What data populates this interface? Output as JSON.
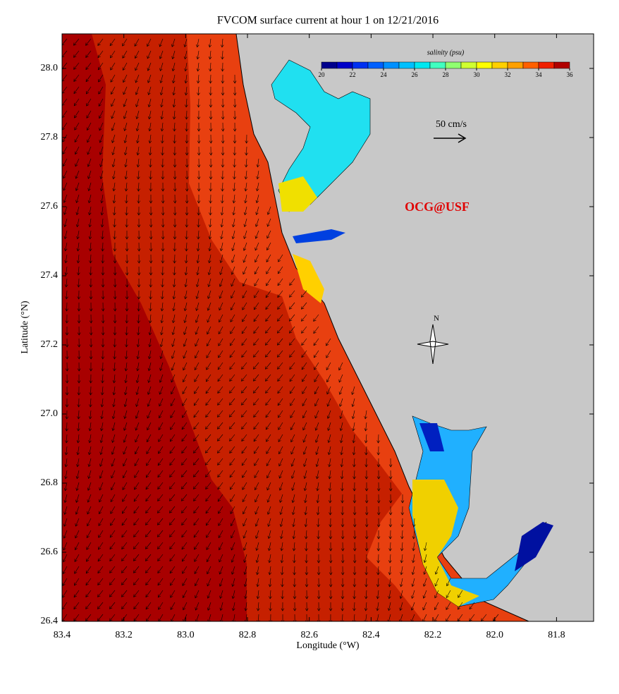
{
  "title": "FVCOM surface current at hour 1 on 12/21/2016",
  "x_axis": {
    "label": "Longitude (°W)",
    "lim": [
      83.4,
      81.68
    ],
    "ticks": [
      83.4,
      83.2,
      {
        "value": 83.0,
        "label": "83.0"
      },
      82.8,
      82.6,
      82.4,
      82.2,
      {
        "value": 82.0,
        "label": "82.0"
      },
      81.8
    ]
  },
  "y_axis": {
    "label": "Latitude (°N)",
    "lim": [
      26.4,
      28.1
    ],
    "ticks": [
      26.4,
      26.6,
      26.8,
      {
        "value": 27.0,
        "label": "27.0"
      },
      27.2,
      27.4,
      27.6,
      27.8,
      {
        "value": 28.0,
        "label": "28.0"
      }
    ]
  },
  "colorbar": {
    "label": "salinity (psu)",
    "lim": [
      20,
      36
    ],
    "ticks": [
      20,
      22,
      24,
      26,
      28,
      30,
      32,
      34,
      36
    ],
    "colors": [
      "#00008c",
      "#0000c8",
      "#0030f0",
      "#0060ff",
      "#0090ff",
      "#00c0ff",
      "#00e8f0",
      "#40ffc0",
      "#90ff70",
      "#d0ff30",
      "#ffff00",
      "#ffd000",
      "#ffa000",
      "#ff6000",
      "#f02000",
      "#b00000"
    ]
  },
  "scale_label": "50 cm/s",
  "compass_label": "N",
  "credit": "OCG@USF"
}
